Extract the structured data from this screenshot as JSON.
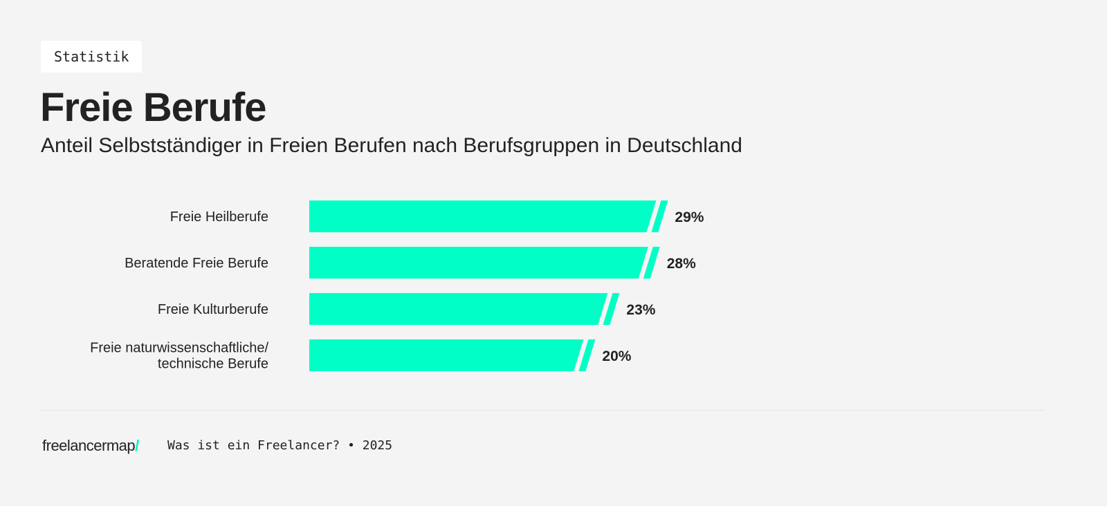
{
  "tag": "Statistik",
  "title": "Freie Berufe",
  "subtitle": "Anteil Selbstständiger in Freien Berufen nach Berufsgruppen in Deutschland",
  "chart_data": {
    "type": "bar",
    "orientation": "horizontal",
    "categories": [
      [
        "Freie Heilberufe"
      ],
      [
        "Beratende Freie Berufe"
      ],
      [
        "Freie Kulturberufe"
      ],
      [
        "Freie naturwissenschaftliche/",
        "technische Berufe"
      ]
    ],
    "values": [
      29,
      28,
      23,
      20
    ],
    "value_labels": [
      "29%",
      "28%",
      "23%",
      "20%"
    ],
    "unit": "%",
    "axis_broken": true,
    "grid": false,
    "bar_color": "#00ffc6"
  },
  "footer": {
    "logo": "freelancermap",
    "logo_slash": "/",
    "source": "Was ist ein Freelancer? • 2025"
  },
  "colors": {
    "accent": "#00ffc6",
    "background": "#f4f4f4",
    "text": "#222222"
  }
}
